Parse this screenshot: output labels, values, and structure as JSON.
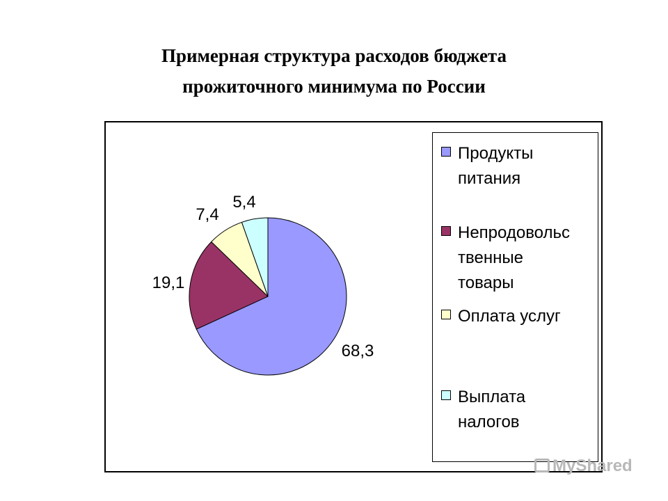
{
  "slide": {
    "title_line1": "Примерная структура расходов бюджета",
    "title_line2": "прожиточного минимума по России"
  },
  "chart_data": {
    "type": "pie",
    "categories": [
      "Продукты питания",
      "Непродовольственные товары",
      "Оплата услуг",
      "Выплата налогов"
    ],
    "values": [
      68.3,
      19.1,
      7.4,
      5.4
    ],
    "data_labels": [
      "68,3",
      "19,1",
      "7,4",
      "5,4"
    ],
    "colors": [
      "#9999ff",
      "#993366",
      "#ffffcc",
      "#ccffff"
    ],
    "legend": [
      {
        "label": "Продукты\nпитания",
        "color": "#9999ff"
      },
      {
        "label": "Непродовольс\nтвенные\nтовары",
        "color": "#993366"
      },
      {
        "label": "Оплата услуг",
        "color": "#ffffcc"
      },
      {
        "label": "Выплата\nналогов",
        "color": "#ccffff"
      }
    ],
    "legend_position": "right",
    "start": "top, clockwise"
  },
  "watermark": {
    "text": "MyShared"
  }
}
